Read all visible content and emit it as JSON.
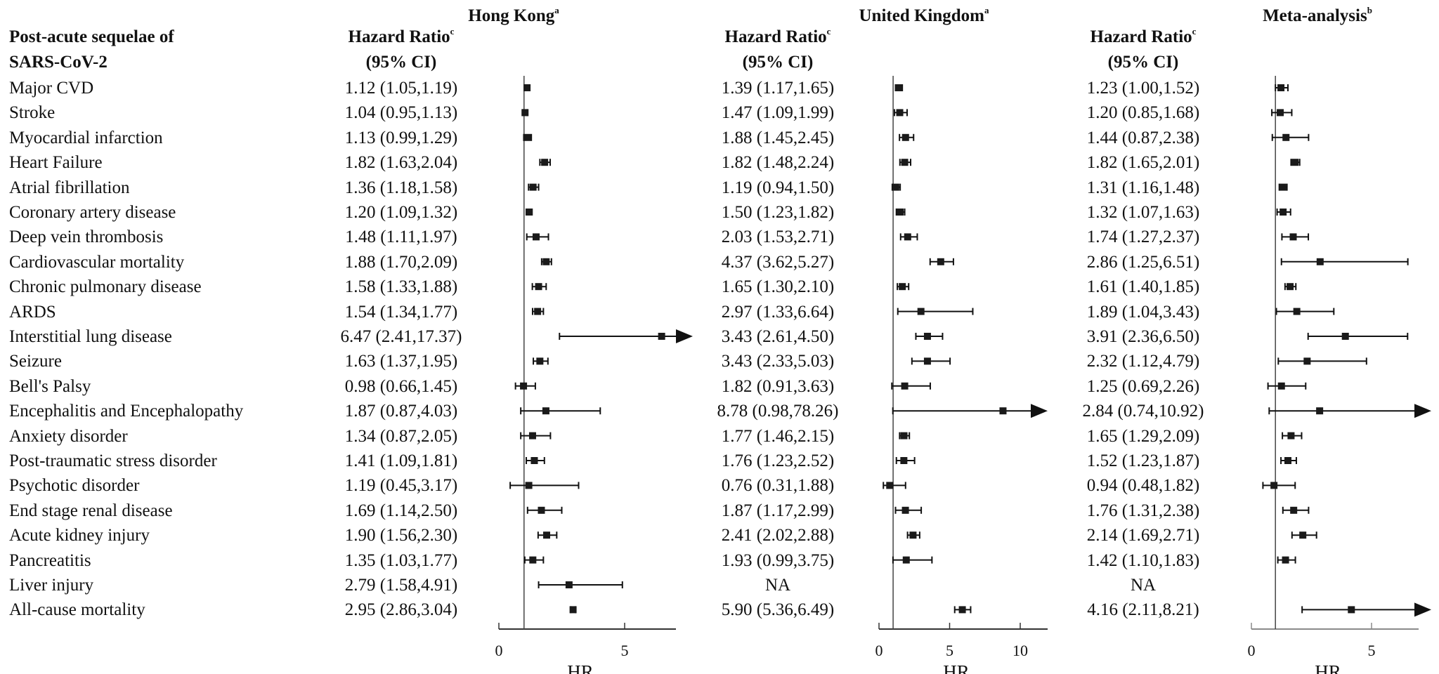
{
  "header": {
    "outcome_line1": "Post-acute sequelae of",
    "outcome_line2": "SARS-CoV-2",
    "hr_label": "Hazard Ratio",
    "hr_sup": "c",
    "ci_label": "(95% CI)"
  },
  "chart_data": {
    "type": "forest",
    "outcomes": [
      "Major CVD",
      "Stroke",
      "Myocardial infarction",
      "Heart Failure",
      "Atrial fibrillation",
      "Coronary artery disease",
      "Deep vein thrombosis",
      "Cardiovascular mortality",
      "Chronic pulmonary disease",
      "ARDS",
      "Interstitial lung disease",
      "Seizure",
      "Bell's Palsy",
      "Encephalitis and Encephalopathy",
      "Anxiety disorder",
      "Post-traumatic stress disorder",
      "Psychotic disorder",
      "End stage renal disease",
      "Acute kidney injury",
      "Pancreatitis",
      "Liver injury",
      "All-cause mortality"
    ],
    "panels": [
      {
        "title": "Hong Kong",
        "title_sup": "a",
        "xlabel": "HR",
        "xlim": [
          0,
          7
        ],
        "ticks": [
          "0",
          "5"
        ],
        "tick_values": [
          0,
          5
        ],
        "reference": 1,
        "axis_color": "#333333",
        "text": [
          "1.12 (1.05,1.19)",
          "1.04 (0.95,1.13)",
          "1.13 (0.99,1.29)",
          "1.82 (1.63,2.04)",
          "1.36 (1.18,1.58)",
          "1.20 (1.09,1.32)",
          "1.48 (1.11,1.97)",
          "1.88 (1.70,2.09)",
          "1.58 (1.33,1.88)",
          "1.54 (1.34,1.77)",
          "6.47 (2.41,17.37)",
          "1.63 (1.37,1.95)",
          "0.98 (0.66,1.45)",
          "1.87 (0.87,4.03)",
          "1.34 (0.87,2.05)",
          "1.41 (1.09,1.81)",
          "1.19 (0.45,3.17)",
          "1.69 (1.14,2.50)",
          "1.90 (1.56,2.30)",
          "1.35 (1.03,1.77)",
          "2.79 (1.58,4.91)",
          "2.95 (2.86,3.04)"
        ],
        "hr": [
          1.12,
          1.04,
          1.13,
          1.82,
          1.36,
          1.2,
          1.48,
          1.88,
          1.58,
          1.54,
          6.47,
          1.63,
          0.98,
          1.87,
          1.34,
          1.41,
          1.19,
          1.69,
          1.9,
          1.35,
          2.79,
          2.95
        ],
        "lower": [
          1.05,
          0.95,
          0.99,
          1.63,
          1.18,
          1.09,
          1.11,
          1.7,
          1.33,
          1.34,
          2.41,
          1.37,
          0.66,
          0.87,
          0.87,
          1.09,
          0.45,
          1.14,
          1.56,
          1.03,
          1.58,
          2.86
        ],
        "upper": [
          1.19,
          1.13,
          1.29,
          2.04,
          1.58,
          1.32,
          1.97,
          2.09,
          1.88,
          1.77,
          17.37,
          1.95,
          1.45,
          4.03,
          2.05,
          1.81,
          3.17,
          2.5,
          2.3,
          1.77,
          4.91,
          3.04
        ]
      },
      {
        "title": "United Kingdom",
        "title_sup": "a",
        "xlabel": "HR",
        "xlim": [
          0,
          12
        ],
        "ticks": [
          "0",
          "5",
          "10"
        ],
        "tick_values": [
          0,
          5,
          10
        ],
        "reference": 1,
        "axis_color": "#333333",
        "text": [
          "1.39 (1.17,1.65)",
          "1.47 (1.09,1.99)",
          "1.88 (1.45,2.45)",
          "1.82 (1.48,2.24)",
          "1.19 (0.94,1.50)",
          "1.50 (1.23,1.82)",
          "2.03 (1.53,2.71)",
          "4.37 (3.62,5.27)",
          "1.65 (1.30,2.10)",
          "2.97 (1.33,6.64)",
          "3.43 (2.61,4.50)",
          "3.43 (2.33,5.03)",
          "1.82 (0.91,3.63)",
          "8.78 (0.98,78.26)",
          "1.77 (1.46,2.15)",
          "1.76 (1.23,2.52)",
          "0.76 (0.31,1.88)",
          "1.87 (1.17,2.99)",
          "2.41 (2.02,2.88)",
          "1.93 (0.99,3.75)",
          "NA",
          "5.90 (5.36,6.49)"
        ],
        "hr": [
          1.39,
          1.47,
          1.88,
          1.82,
          1.19,
          1.5,
          2.03,
          4.37,
          1.65,
          2.97,
          3.43,
          3.43,
          1.82,
          8.78,
          1.77,
          1.76,
          0.76,
          1.87,
          2.41,
          1.93,
          null,
          5.9
        ],
        "lower": [
          1.17,
          1.09,
          1.45,
          1.48,
          0.94,
          1.23,
          1.53,
          3.62,
          1.3,
          1.33,
          2.61,
          2.33,
          0.91,
          0.98,
          1.46,
          1.23,
          0.31,
          1.17,
          2.02,
          0.99,
          null,
          5.36
        ],
        "upper": [
          1.65,
          1.99,
          2.45,
          2.24,
          1.5,
          1.82,
          2.71,
          5.27,
          2.1,
          6.64,
          4.5,
          5.03,
          3.63,
          78.26,
          2.15,
          2.52,
          1.88,
          2.99,
          2.88,
          3.75,
          null,
          6.49
        ]
      },
      {
        "title": "Meta-analysis",
        "title_sup": "b",
        "xlabel": "HR",
        "xlim": [
          0,
          7
        ],
        "ticks": [
          "0",
          "5"
        ],
        "tick_values": [
          0,
          5
        ],
        "reference": 1,
        "axis_color": "#8a8a8a",
        "text": [
          "1.23 (1.00,1.52)",
          "1.20 (0.85,1.68)",
          "1.44 (0.87,2.38)",
          "1.82 (1.65,2.01)",
          "1.31 (1.16,1.48)",
          "1.32 (1.07,1.63)",
          "1.74 (1.27,2.37)",
          "2.86 (1.25,6.51)",
          "1.61 (1.40,1.85)",
          "1.89 (1.04,3.43)",
          "3.91 (2.36,6.50)",
          "2.32 (1.12,4.79)",
          "1.25 (0.69,2.26)",
          "2.84 (0.74,10.92)",
          "1.65 (1.29,2.09)",
          "1.52 (1.23,1.87)",
          "0.94 (0.48,1.82)",
          "1.76 (1.31,2.38)",
          "2.14 (1.69,2.71)",
          "1.42 (1.10,1.83)",
          "NA",
          "4.16 (2.11,8.21)"
        ],
        "hr": [
          1.23,
          1.2,
          1.44,
          1.82,
          1.31,
          1.32,
          1.74,
          2.86,
          1.61,
          1.89,
          3.91,
          2.32,
          1.25,
          2.84,
          1.65,
          1.52,
          0.94,
          1.76,
          2.14,
          1.42,
          null,
          4.16
        ],
        "lower": [
          1.0,
          0.85,
          0.87,
          1.65,
          1.16,
          1.07,
          1.27,
          1.25,
          1.4,
          1.04,
          2.36,
          1.12,
          0.69,
          0.74,
          1.29,
          1.23,
          0.48,
          1.31,
          1.69,
          1.1,
          null,
          2.11
        ],
        "upper": [
          1.52,
          1.68,
          2.38,
          2.01,
          1.48,
          1.63,
          2.37,
          6.51,
          1.85,
          3.43,
          6.5,
          4.79,
          2.26,
          10.92,
          2.09,
          1.87,
          1.82,
          2.38,
          2.71,
          1.83,
          null,
          8.21
        ]
      }
    ]
  }
}
